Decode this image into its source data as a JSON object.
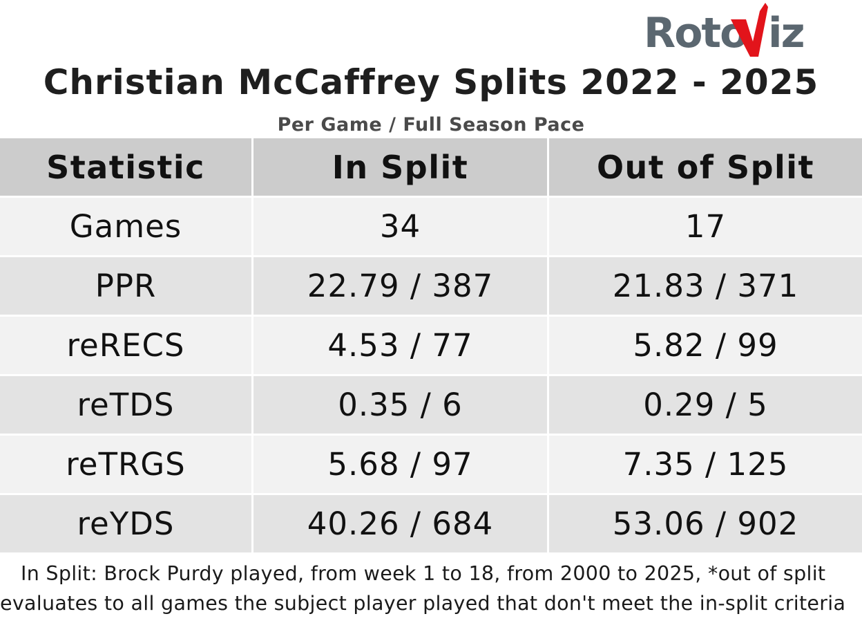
{
  "logo": {
    "text": "RotoViz",
    "text_color": "#5b6770",
    "accent_color": "#e2141b"
  },
  "title": "Christian McCaffrey Splits 2022 - 2025",
  "subtitle": "Per Game / Full Season Pace",
  "chart_data": {
    "type": "table",
    "title": "Christian McCaffrey Splits 2022 - 2025",
    "subtitle": "Per Game / Full Season Pace",
    "columns": [
      "Statistic",
      "In Split",
      "Out of Split"
    ],
    "rows": [
      [
        "Games",
        "34",
        "17"
      ],
      [
        "PPR",
        "22.79 / 387",
        "21.83 / 371"
      ],
      [
        "reRECS",
        "4.53 / 77",
        "5.82 / 99"
      ],
      [
        "reTDS",
        "0.35 / 6",
        "0.29 / 5"
      ],
      [
        "reTRGS",
        "5.68 / 97",
        "7.35 / 125"
      ],
      [
        "reYDS",
        "40.26 / 684",
        "53.06 / 902"
      ]
    ],
    "colors": {
      "header_bg": "#cccccc",
      "row_light": "#f2f2f2",
      "row_dark": "#e3e3e3"
    }
  },
  "footnote": "In Split: Brock Purdy played, from week 1 to 18, from 2000 to 2025,  *out of split evaluates to all games the subject player played that don't meet the in-split criteria"
}
